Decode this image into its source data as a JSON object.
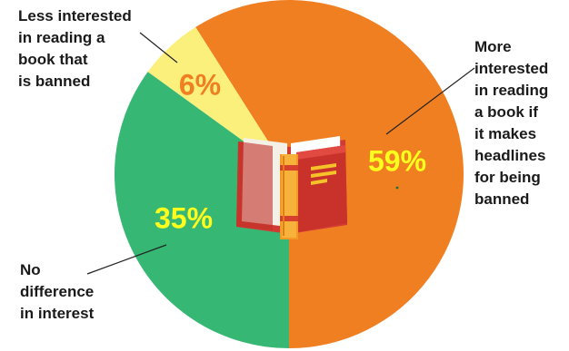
{
  "chart_data": {
    "type": "pie",
    "slices": [
      {
        "label": "More interested in reading a book if it makes headlines for being banned",
        "label_lines": [
          "More",
          "interested",
          "in reading",
          "a book if",
          "it makes",
          "headlines",
          "for being",
          "banned"
        ],
        "value": 59,
        "value_label": "59%",
        "color": "#f07f22",
        "value_color": "#ffff1e"
      },
      {
        "label": "No difference in interest",
        "label_lines": [
          "No",
          "difference",
          "in interest"
        ],
        "value": 35,
        "value_label": "35%",
        "color": "#36b874",
        "value_color": "#ffff1e"
      },
      {
        "label": "Less interested in reading a book that is banned",
        "label_lines": [
          "Less interested",
          "in reading a",
          "book that",
          "is banned"
        ],
        "value": 6,
        "value_label": "6%",
        "color": "#fcf07c",
        "value_color": "#f07f22"
      }
    ],
    "start_angle_deg": 180,
    "direction": "counterclockwise-from-bottom",
    "center_illustration": "open-book-icon"
  }
}
